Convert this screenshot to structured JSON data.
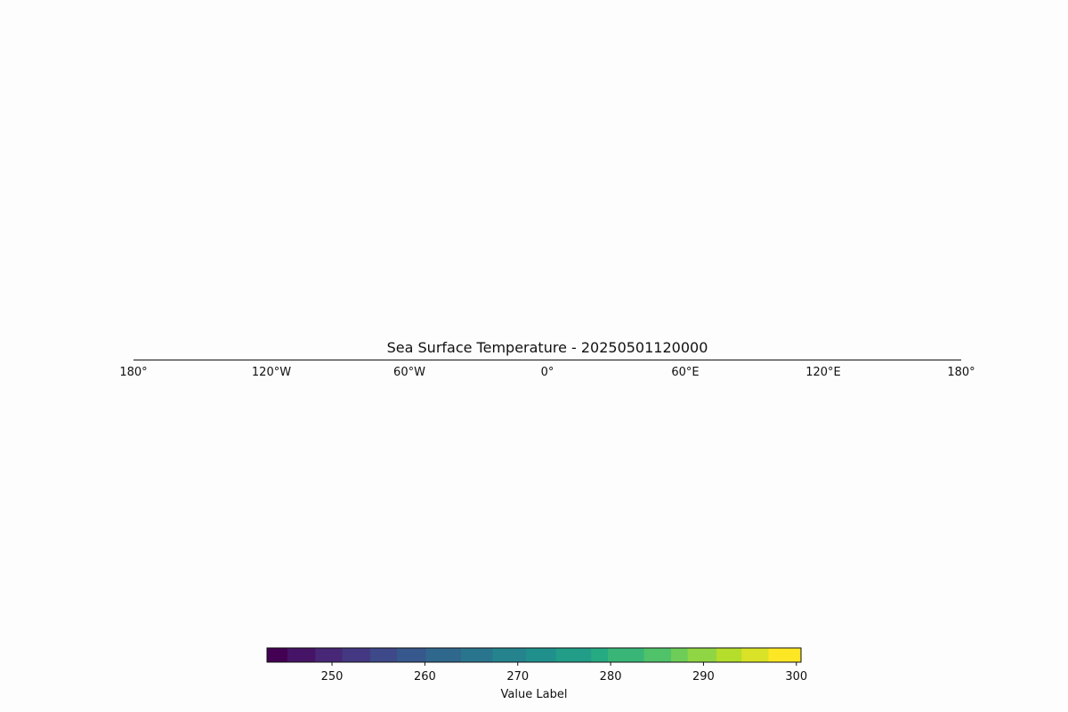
{
  "chart_data": {
    "type": "heatmap",
    "title": "Sea Surface Temperature - 20250501120000",
    "map": {
      "lon_range": [
        -180,
        180
      ],
      "lon_ticks": [
        {
          "value": -180,
          "label": "180°"
        },
        {
          "value": -120,
          "label": "120°W"
        },
        {
          "value": -60,
          "label": "60°W"
        },
        {
          "value": 0,
          "label": "0°"
        },
        {
          "value": 60,
          "label": "60°E"
        },
        {
          "value": 120,
          "label": "120°E"
        },
        {
          "value": 180,
          "label": "180°"
        }
      ],
      "grid": false
    },
    "colorbar": {
      "orientation": "horizontal",
      "placement": "bottom",
      "label": "Value Label",
      "colormap": "viridis",
      "range": [
        243,
        300.5
      ],
      "boundaries": [
        243,
        245.2,
        248.2,
        251.1,
        254.1,
        257,
        260.1,
        263.9,
        267.3,
        270.9,
        274.1,
        277.9,
        279.7,
        283.6,
        286.5,
        288.3,
        291.4,
        294.1,
        297,
        300.5
      ],
      "ticks": [
        {
          "value": 250,
          "label": "250"
        },
        {
          "value": 260,
          "label": "260"
        },
        {
          "value": 270,
          "label": "270"
        },
        {
          "value": 280,
          "label": "280"
        },
        {
          "value": 290,
          "label": "290"
        },
        {
          "value": 300,
          "label": "300"
        }
      ]
    }
  }
}
